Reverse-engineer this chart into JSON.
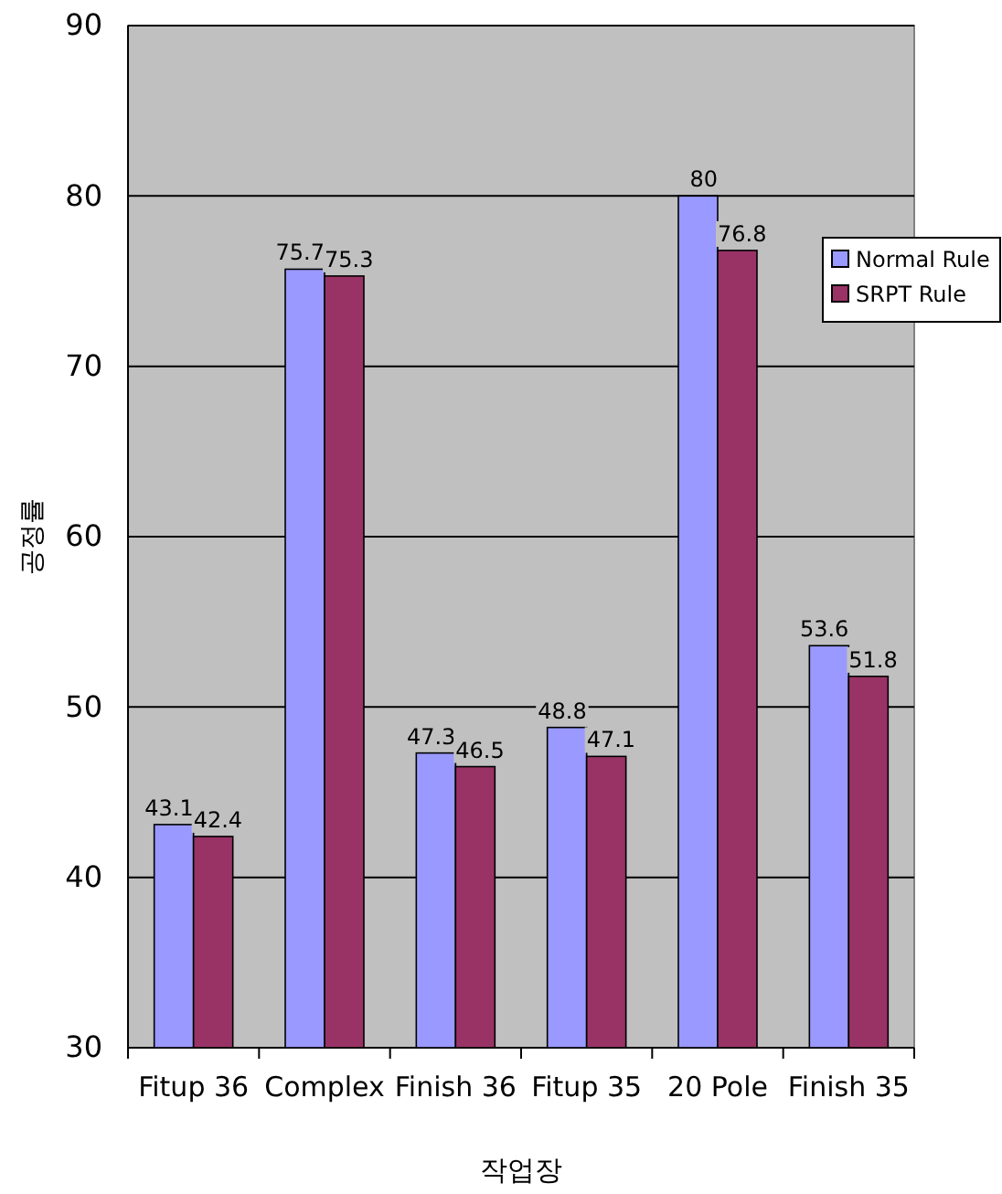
{
  "chart_data": {
    "type": "bar",
    "xlabel": "작업장",
    "ylabel": "공정률",
    "categories": [
      "Fitup 36",
      "Complex",
      "Finish 36",
      "Fitup 35",
      "20 Pole",
      "Finish 35"
    ],
    "series": [
      {
        "name": "Normal Rule",
        "color": "#9999ff",
        "values": [
          43.1,
          75.7,
          47.3,
          48.8,
          80,
          53.6
        ]
      },
      {
        "name": "SRPT Rule",
        "color": "#993366",
        "values": [
          42.4,
          75.3,
          46.5,
          47.1,
          76.8,
          51.8
        ]
      }
    ],
    "ylim": [
      30,
      90
    ],
    "yticks": [
      30,
      40,
      50,
      60,
      70,
      80,
      90
    ],
    "grid": "y",
    "legend": "right",
    "data_labels": true
  }
}
